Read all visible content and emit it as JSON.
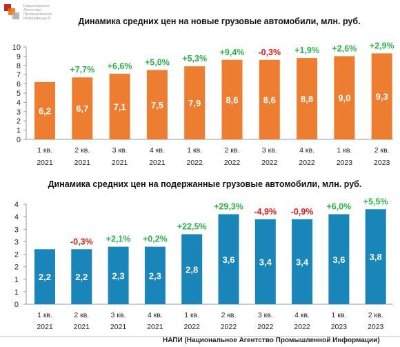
{
  "logo": {
    "lines": [
      "Национальное",
      "Агентство",
      "Промышленной",
      "Информации ®"
    ]
  },
  "footer": "НАПИ (Национальное Агентство Промышленной Информации)",
  "colors": {
    "chart1_bar": "#ed7d31",
    "chart2_bar": "#1a85b8",
    "positive": "#2bb34a",
    "negative": "#e01b1b"
  },
  "chart_data": [
    {
      "type": "bar",
      "title": "Динамика средних цен на новые грузовые автомобили, млн. руб.",
      "categories": [
        [
          "1 кв.",
          "2021"
        ],
        [
          "2 кв.",
          "2021"
        ],
        [
          "3 кв.",
          "2021"
        ],
        [
          "4 кв.",
          "2021"
        ],
        [
          "1 кв.",
          "2022"
        ],
        [
          "2 кв.",
          "2022"
        ],
        [
          "3 кв.",
          "2022"
        ],
        [
          "4 кв.",
          "2022"
        ],
        [
          "1 кв.",
          "2023"
        ],
        [
          "2 кв.",
          "2023"
        ]
      ],
      "values": [
        6.2,
        6.7,
        7.1,
        7.5,
        7.9,
        8.6,
        8.6,
        8.8,
        9.0,
        9.3
      ],
      "value_labels": [
        "6,2",
        "6,7",
        "7,1",
        "7,5",
        "7,9",
        "8,6",
        "8,6",
        "8,8",
        "9,0",
        "9,3"
      ],
      "change_labels": [
        "",
        "+7,7%",
        "+6,6%",
        "+5,0%",
        "+5,3%",
        "+9,4%",
        "-0,3%",
        "+1,9%",
        "+2,6%",
        "+2,9%"
      ],
      "yticks": [
        "0",
        "1",
        "2",
        "3",
        "4",
        "5",
        "6",
        "7",
        "8",
        "9",
        "10"
      ],
      "ylim": [
        0,
        10
      ],
      "grid": false,
      "legend": false
    },
    {
      "type": "bar",
      "title": "Динамика средних цен на подержанные грузовые автомобили, млн. руб.",
      "categories": [
        [
          "1 кв.",
          "2021"
        ],
        [
          "2 кв.",
          "2021"
        ],
        [
          "3 кв.",
          "2021"
        ],
        [
          "4 кв.",
          "2021"
        ],
        [
          "1 кв.",
          "2022"
        ],
        [
          "2 кв.",
          "2022"
        ],
        [
          "3 кв.",
          "2022"
        ],
        [
          "4 кв.",
          "2022"
        ],
        [
          "1 кв.",
          "2023"
        ],
        [
          "2 кв.",
          "2023"
        ]
      ],
      "values": [
        2.2,
        2.2,
        2.3,
        2.3,
        2.8,
        3.6,
        3.4,
        3.4,
        3.6,
        3.8
      ],
      "value_labels": [
        "2,2",
        "2,2",
        "2,3",
        "2,3",
        "2,8",
        "3,6",
        "3,4",
        "3,4",
        "3,6",
        "3,8"
      ],
      "change_labels": [
        "",
        "-0,3%",
        "+2,1%",
        "+0,2%",
        "+22,5%",
        "+29,3%",
        "-4,9%",
        "-0,9%",
        "+6,0%",
        "+5,5%"
      ],
      "yticks": [
        "0",
        "1",
        "1",
        "2",
        "2",
        "3",
        "3",
        "4",
        "4"
      ],
      "ylim": [
        0,
        4
      ],
      "grid": false,
      "legend": false
    }
  ]
}
